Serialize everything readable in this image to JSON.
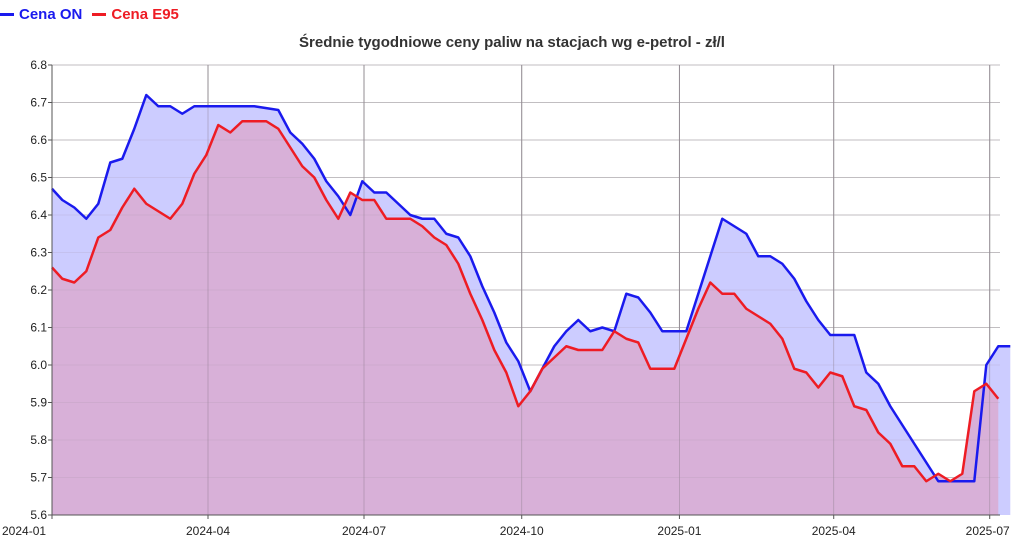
{
  "legend": [
    {
      "name": "Cena ON",
      "color": "#1a1aee"
    },
    {
      "name": "Cena E95",
      "color": "#ee1c24"
    }
  ],
  "chart_data": {
    "type": "area",
    "title": "Średnie tygodniowe ceny paliw na stacjach wg e-petrol - zł/l",
    "xlabel": "",
    "ylabel": "",
    "x_start": "2024-01-01",
    "x_end": "2025-07-07",
    "ylim": [
      5.6,
      6.8
    ],
    "yticks": [
      "5.6",
      "5.7",
      "5.8",
      "5.9",
      "6.0",
      "6.1",
      "6.2",
      "6.3",
      "6.4",
      "6.5",
      "6.6",
      "6.7",
      "6.8"
    ],
    "xticks": [
      {
        "date": "2024-01-01",
        "label": "2024-01"
      },
      {
        "date": "2024-04-01",
        "label": "2024-04"
      },
      {
        "date": "2024-07-01",
        "label": "2024-07"
      },
      {
        "date": "2024-10-01",
        "label": "2024-10"
      },
      {
        "date": "2025-01-01",
        "label": "2025-01"
      },
      {
        "date": "2025-04-01",
        "label": "2025-04"
      },
      {
        "date": "2025-07-01",
        "label": "2025-07"
      }
    ],
    "grid": true,
    "legend_position": "top-left",
    "series": [
      {
        "name": "Cena ON",
        "color": "#1a1aee",
        "fill": "#ccccff",
        "points": [
          [
            "2024-01-01",
            6.47
          ],
          [
            "2024-01-07",
            6.44
          ],
          [
            "2024-01-14",
            6.42
          ],
          [
            "2024-01-21",
            6.39
          ],
          [
            "2024-01-28",
            6.43
          ],
          [
            "2024-02-04",
            6.54
          ],
          [
            "2024-02-11",
            6.55
          ],
          [
            "2024-02-18",
            6.63
          ],
          [
            "2024-02-25",
            6.72
          ],
          [
            "2024-03-03",
            6.69
          ],
          [
            "2024-03-10",
            6.69
          ],
          [
            "2024-03-17",
            6.67
          ],
          [
            "2024-03-24",
            6.69
          ],
          [
            "2024-03-31",
            6.69
          ],
          [
            "2024-04-07",
            6.69
          ],
          [
            "2024-04-14",
            6.69
          ],
          [
            "2024-04-21",
            6.69
          ],
          [
            "2024-04-28",
            6.69
          ],
          [
            "2024-05-05",
            6.685
          ],
          [
            "2024-05-12",
            6.68
          ],
          [
            "2024-05-19",
            6.62
          ],
          [
            "2024-05-26",
            6.59
          ],
          [
            "2024-06-02",
            6.55
          ],
          [
            "2024-06-09",
            6.49
          ],
          [
            "2024-06-16",
            6.45
          ],
          [
            "2024-06-23",
            6.4
          ],
          [
            "2024-06-30",
            6.49
          ],
          [
            "2024-07-07",
            6.46
          ],
          [
            "2024-07-14",
            6.46
          ],
          [
            "2024-07-21",
            6.43
          ],
          [
            "2024-07-28",
            6.4
          ],
          [
            "2024-08-04",
            6.39
          ],
          [
            "2024-08-11",
            6.39
          ],
          [
            "2024-08-18",
            6.35
          ],
          [
            "2024-08-25",
            6.34
          ],
          [
            "2024-09-01",
            6.29
          ],
          [
            "2024-09-08",
            6.21
          ],
          [
            "2024-09-15",
            6.14
          ],
          [
            "2024-09-22",
            6.06
          ],
          [
            "2024-09-29",
            6.01
          ],
          [
            "2024-10-06",
            5.93
          ],
          [
            "2024-10-13",
            5.99
          ],
          [
            "2024-10-20",
            6.05
          ],
          [
            "2024-10-27",
            6.09
          ],
          [
            "2024-11-03",
            6.12
          ],
          [
            "2024-11-10",
            6.09
          ],
          [
            "2024-11-17",
            6.1
          ],
          [
            "2024-11-24",
            6.09
          ],
          [
            "2024-12-01",
            6.19
          ],
          [
            "2024-12-08",
            6.18
          ],
          [
            "2024-12-15",
            6.14
          ],
          [
            "2024-12-22",
            6.09
          ],
          [
            "2024-12-29",
            6.09
          ],
          [
            "2025-01-05",
            6.09
          ],
          [
            "2025-01-12",
            6.19
          ],
          [
            "2025-01-19",
            6.29
          ],
          [
            "2025-01-26",
            6.39
          ],
          [
            "2025-02-02",
            6.37
          ],
          [
            "2025-02-09",
            6.35
          ],
          [
            "2025-02-16",
            6.29
          ],
          [
            "2025-02-23",
            6.29
          ],
          [
            "2025-03-02",
            6.27
          ],
          [
            "2025-03-09",
            6.23
          ],
          [
            "2025-03-16",
            6.17
          ],
          [
            "2025-03-23",
            6.12
          ],
          [
            "2025-03-30",
            6.08
          ],
          [
            "2025-04-06",
            6.08
          ],
          [
            "2025-04-13",
            6.08
          ],
          [
            "2025-04-20",
            5.98
          ],
          [
            "2025-04-27",
            5.95
          ],
          [
            "2025-05-04",
            5.89
          ],
          [
            "2025-05-11",
            5.84
          ],
          [
            "2025-05-18",
            5.79
          ],
          [
            "2025-05-25",
            5.74
          ],
          [
            "2025-06-01",
            5.69
          ],
          [
            "2025-06-08",
            5.69
          ],
          [
            "2025-06-15",
            5.69
          ],
          [
            "2025-06-22",
            5.69
          ],
          [
            "2025-06-29",
            6.0
          ],
          [
            "2025-07-06",
            6.05
          ],
          [
            "2025-07-13",
            6.05
          ]
        ]
      },
      {
        "name": "Cena E95",
        "color": "#ee1c24",
        "fill": "#d8b0d8",
        "points": [
          [
            "2024-01-01",
            6.26
          ],
          [
            "2024-01-07",
            6.23
          ],
          [
            "2024-01-14",
            6.22
          ],
          [
            "2024-01-21",
            6.25
          ],
          [
            "2024-01-28",
            6.34
          ],
          [
            "2024-02-04",
            6.36
          ],
          [
            "2024-02-11",
            6.42
          ],
          [
            "2024-02-18",
            6.47
          ],
          [
            "2024-02-25",
            6.43
          ],
          [
            "2024-03-03",
            6.41
          ],
          [
            "2024-03-10",
            6.39
          ],
          [
            "2024-03-17",
            6.43
          ],
          [
            "2024-03-24",
            6.51
          ],
          [
            "2024-03-31",
            6.56
          ],
          [
            "2024-04-07",
            6.64
          ],
          [
            "2024-04-14",
            6.62
          ],
          [
            "2024-04-21",
            6.65
          ],
          [
            "2024-04-28",
            6.65
          ],
          [
            "2024-05-05",
            6.65
          ],
          [
            "2024-05-12",
            6.63
          ],
          [
            "2024-05-19",
            6.58
          ],
          [
            "2024-05-26",
            6.53
          ],
          [
            "2024-06-02",
            6.5
          ],
          [
            "2024-06-09",
            6.44
          ],
          [
            "2024-06-16",
            6.39
          ],
          [
            "2024-06-23",
            6.46
          ],
          [
            "2024-06-30",
            6.44
          ],
          [
            "2024-07-07",
            6.44
          ],
          [
            "2024-07-14",
            6.39
          ],
          [
            "2024-07-21",
            6.39
          ],
          [
            "2024-07-28",
            6.39
          ],
          [
            "2024-08-04",
            6.37
          ],
          [
            "2024-08-11",
            6.34
          ],
          [
            "2024-08-18",
            6.32
          ],
          [
            "2024-08-25",
            6.27
          ],
          [
            "2024-09-01",
            6.19
          ],
          [
            "2024-09-08",
            6.12
          ],
          [
            "2024-09-15",
            6.04
          ],
          [
            "2024-09-22",
            5.98
          ],
          [
            "2024-09-29",
            5.89
          ],
          [
            "2024-10-06",
            5.93
          ],
          [
            "2024-10-13",
            5.99
          ],
          [
            "2024-10-20",
            6.02
          ],
          [
            "2024-10-27",
            6.05
          ],
          [
            "2024-11-03",
            6.04
          ],
          [
            "2024-11-10",
            6.04
          ],
          [
            "2024-11-17",
            6.04
          ],
          [
            "2024-11-24",
            6.09
          ],
          [
            "2024-12-01",
            6.07
          ],
          [
            "2024-12-08",
            6.06
          ],
          [
            "2024-12-15",
            5.99
          ],
          [
            "2024-12-22",
            5.99
          ],
          [
            "2024-12-29",
            5.99
          ],
          [
            "2025-01-05",
            6.07
          ],
          [
            "2025-01-12",
            6.15
          ],
          [
            "2025-01-19",
            6.22
          ],
          [
            "2025-01-26",
            6.19
          ],
          [
            "2025-02-02",
            6.19
          ],
          [
            "2025-02-09",
            6.15
          ],
          [
            "2025-02-16",
            6.13
          ],
          [
            "2025-02-23",
            6.11
          ],
          [
            "2025-03-02",
            6.07
          ],
          [
            "2025-03-09",
            5.99
          ],
          [
            "2025-03-16",
            5.98
          ],
          [
            "2025-03-23",
            5.94
          ],
          [
            "2025-03-30",
            5.98
          ],
          [
            "2025-04-06",
            5.97
          ],
          [
            "2025-04-13",
            5.89
          ],
          [
            "2025-04-20",
            5.88
          ],
          [
            "2025-04-27",
            5.82
          ],
          [
            "2025-05-04",
            5.79
          ],
          [
            "2025-05-11",
            5.73
          ],
          [
            "2025-05-18",
            5.73
          ],
          [
            "2025-05-25",
            5.69
          ],
          [
            "2025-06-01",
            5.71
          ],
          [
            "2025-06-08",
            5.69
          ],
          [
            "2025-06-15",
            5.71
          ],
          [
            "2025-06-22",
            5.93
          ],
          [
            "2025-06-29",
            5.95
          ],
          [
            "2025-07-06",
            5.91
          ]
        ]
      }
    ]
  }
}
